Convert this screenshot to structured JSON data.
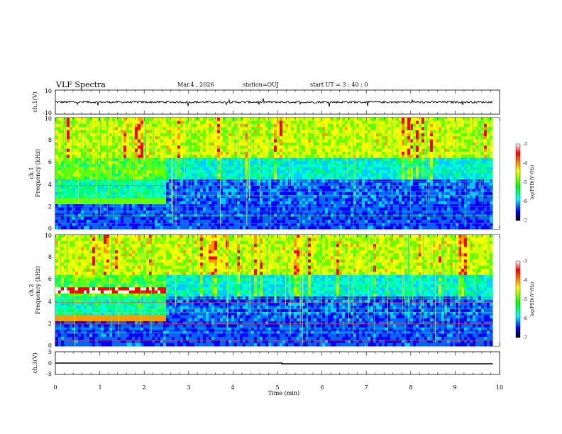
{
  "header": {
    "title": "VLF Spectra",
    "date": "Mar.4 , 2026",
    "station": "station=OUJ",
    "start": "start UT = 3 : 40 : 0"
  },
  "colorbar": {
    "label": "log(PSD)(V²/Hz)",
    "ticks": [
      "-3",
      "-4",
      "-5",
      "-6",
      "-7"
    ],
    "stops": [
      "#ffffff",
      "#ff0000",
      "#ffff00",
      "#00ff00",
      "#00ffff",
      "#0000ff",
      "#000000"
    ]
  },
  "chart_data": [
    {
      "type": "line",
      "name": "ch1-voltage",
      "ylabel": "ch.1(V)",
      "ylim": [
        -10,
        10
      ],
      "yticks": [
        "10",
        "-10"
      ],
      "xlim": [
        0,
        10
      ],
      "baseline_v": 0,
      "note_values": {
        "x_min": [
          0,
          9.85
        ],
        "y": [
          0,
          0
        ]
      }
    },
    {
      "type": "heatmap",
      "name": "ch1-spectrogram",
      "ylabel": "ch.1",
      "ylabel2": "Frequency (kHz)",
      "ylim": [
        0,
        10
      ],
      "yticks": [
        "0",
        "2",
        "4",
        "6",
        "8",
        "10"
      ],
      "xlim": [
        0,
        10
      ],
      "data_end_min": 9.85,
      "transition_min": 2.45
    },
    {
      "type": "heatmap",
      "name": "ch2-spectrogram",
      "ylabel": "ch.2",
      "ylabel2": "Frequency (kHz)",
      "ylim": [
        0,
        10
      ],
      "yticks": [
        "0",
        "2",
        "4",
        "6",
        "8",
        "10"
      ],
      "xlim": [
        0,
        10
      ],
      "data_end_min": 9.85,
      "transition_min": 2.45
    },
    {
      "type": "line",
      "name": "ch3-voltage",
      "ylabel": "ch.3(V)",
      "ylim": [
        -5,
        5
      ],
      "yticks": [
        "5",
        "0",
        "-5"
      ],
      "xlim": [
        0,
        10
      ],
      "step": {
        "x": [
          0,
          5.1,
          5.1,
          9.85
        ],
        "y": [
          0,
          0,
          -0.3,
          -0.3
        ]
      }
    }
  ],
  "xaxis": {
    "label": "Time (min)",
    "ticks": [
      "0",
      "1",
      "2",
      "3",
      "4",
      "5",
      "6",
      "7",
      "8",
      "9",
      "10"
    ]
  }
}
